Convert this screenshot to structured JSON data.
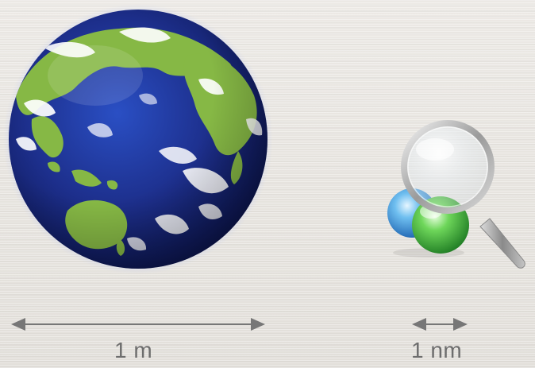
{
  "labels": {
    "earth_scale": "1 m",
    "molecule_scale": "1 nm"
  },
  "icons": {
    "earth": "earth-globe-icon",
    "molecule": "molecule-icon",
    "magnifier": "magnifying-glass-icon",
    "scale_arrow": "double-headed-arrow-icon"
  },
  "colors": {
    "background": "#e8e5e0",
    "ocean": "#1d2f8c",
    "land": "#86b845",
    "clouds": "#ffffff",
    "atom_blue": "#3a8fd6",
    "atom_green": "#3fae3a",
    "arrow": "#777777",
    "label_text": "#6d6d6d"
  }
}
